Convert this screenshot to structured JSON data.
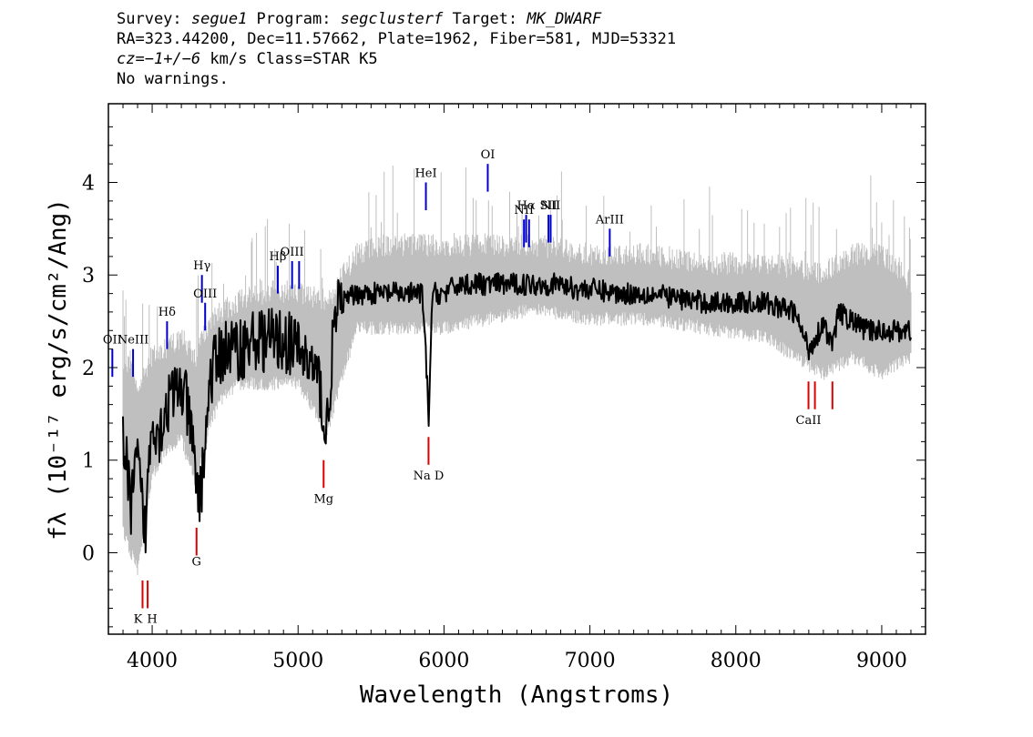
{
  "header": {
    "line1": {
      "survey_label": "Survey: ",
      "survey": "segue1",
      "program_label": " Program: ",
      "program": "segclusterf",
      "target_label": " Target: ",
      "target": "MK_DWARF"
    },
    "line2": "RA=323.44200, Dec=11.57662, Plate=1962, Fiber=581, MJD=53321",
    "line3": {
      "cz_label": "cz=",
      "cz_value": "−1+/−6",
      "cz_unit": " km/s ",
      "class": "Class=STAR K5"
    },
    "line4": "No warnings."
  },
  "colors": {
    "flux": "#000000",
    "error": "#bfbfbf",
    "emission": "#0000cc",
    "absorption": "#dd0000",
    "frame": "#000000"
  },
  "chart_data": {
    "type": "line",
    "xlabel": "Wavelength (Angstroms)",
    "ylabel": "fλ (10⁻¹⁷ erg/s/cm²/Ang)",
    "xlim": [
      3700,
      9300
    ],
    "ylim": [
      -0.88,
      4.85
    ],
    "x_ticks": [
      4000,
      5000,
      6000,
      7000,
      8000,
      9000
    ],
    "y_ticks": [
      0,
      1,
      2,
      3,
      4
    ],
    "grid": false,
    "series": [
      {
        "role": "flux",
        "x": [
          3800,
          3850,
          3900,
          3950,
          4000,
          4050,
          4100,
          4150,
          4200,
          4250,
          4300,
          4330,
          4400,
          4450,
          4500,
          4600,
          4700,
          4800,
          4900,
          5000,
          5100,
          5150,
          5190,
          5250,
          5300,
          5400,
          5500,
          5600,
          5700,
          5800,
          5850,
          5880,
          5895,
          5920,
          6000,
          6100,
          6200,
          6300,
          6400,
          6500,
          6600,
          6700,
          6800,
          6900,
          7000,
          7200,
          7400,
          7600,
          7800,
          8000,
          8200,
          8400,
          8500,
          8542,
          8600,
          8662,
          8700,
          8800,
          8900,
          9000,
          9100,
          9200
        ],
        "y": [
          1.3,
          0.5,
          1.0,
          0.2,
          1.5,
          1.3,
          1.6,
          1.7,
          1.8,
          1.5,
          0.8,
          0.6,
          1.9,
          2.1,
          2.2,
          2.2,
          2.3,
          2.3,
          2.3,
          2.2,
          2.0,
          1.8,
          1.2,
          2.5,
          2.7,
          2.8,
          2.8,
          2.8,
          2.8,
          2.8,
          2.8,
          2.0,
          1.4,
          2.8,
          2.8,
          2.9,
          2.9,
          2.9,
          2.9,
          2.9,
          2.9,
          2.9,
          2.9,
          2.85,
          2.85,
          2.8,
          2.8,
          2.75,
          2.7,
          2.7,
          2.7,
          2.6,
          2.2,
          2.3,
          2.5,
          2.2,
          2.6,
          2.5,
          2.4,
          2.4,
          2.4,
          2.4
        ]
      },
      {
        "role": "error",
        "x": [
          3800,
          3900,
          4000,
          4100,
          4200,
          4300,
          4400,
          4500,
          4600,
          4800,
          5000,
          5200,
          5400,
          5600,
          5800,
          6000,
          6300,
          6600,
          7000,
          7400,
          7800,
          8200,
          8600,
          8800,
          9000,
          9200
        ],
        "lower": [
          0.3,
          -0.1,
          0.9,
          1.2,
          1.3,
          0.8,
          1.5,
          1.8,
          1.9,
          1.9,
          1.9,
          1.4,
          2.5,
          2.5,
          2.5,
          2.5,
          2.6,
          2.7,
          2.6,
          2.6,
          2.5,
          2.4,
          2.0,
          2.2,
          2.0,
          2.2
        ],
        "upper": [
          2.0,
          1.7,
          2.0,
          2.1,
          2.2,
          2.0,
          2.4,
          2.5,
          2.6,
          2.7,
          2.7,
          2.6,
          3.1,
          3.2,
          3.2,
          3.2,
          3.2,
          3.2,
          3.1,
          3.1,
          3.0,
          3.0,
          2.9,
          3.1,
          3.1,
          2.8
        ]
      }
    ],
    "emission_lines": [
      {
        "label": "OII",
        "x": 3727,
        "y_bottom": 1.9,
        "y_top": 2.2
      },
      {
        "label": "NeIII",
        "x": 3869,
        "y_bottom": 1.9,
        "y_top": 2.2
      },
      {
        "label": "Hδ",
        "x": 4102,
        "y_bottom": 2.2,
        "y_top": 2.5
      },
      {
        "label": "Hγ",
        "x": 4341,
        "y_bottom": 2.7,
        "y_top": 3.0
      },
      {
        "label": "OIII",
        "x": 4363,
        "y_bottom": 2.4,
        "y_top": 2.7
      },
      {
        "label": "Hβ",
        "x": 4861,
        "y_bottom": 2.8,
        "y_top": 3.1
      },
      {
        "label": "OIII",
        "x": 4959,
        "y_bottom": 2.85,
        "y_top": 3.15
      },
      {
        "label": "",
        "x": 5007,
        "y_bottom": 2.85,
        "y_top": 3.15
      },
      {
        "label": "HeI",
        "x": 5876,
        "y_bottom": 3.7,
        "y_top": 4.0
      },
      {
        "label": "OI",
        "x": 6300,
        "y_bottom": 3.9,
        "y_top": 4.2
      },
      {
        "label": "NII",
        "x": 6548,
        "y_bottom": 3.3,
        "y_top": 3.6
      },
      {
        "label": "Hα",
        "x": 6563,
        "y_bottom": 3.35,
        "y_top": 3.65
      },
      {
        "label": "",
        "x": 6583,
        "y_bottom": 3.3,
        "y_top": 3.6
      },
      {
        "label": "SII",
        "x": 6716,
        "y_bottom": 3.35,
        "y_top": 3.65
      },
      {
        "label": "NII",
        "x": 6731,
        "y_bottom": 3.35,
        "y_top": 3.65
      },
      {
        "label": "ArIII",
        "x": 7136,
        "y_bottom": 3.2,
        "y_top": 3.5
      }
    ],
    "absorption_lines": [
      {
        "label": "K",
        "x": 3934,
        "y_bottom": -0.6,
        "y_top": -0.3,
        "label_y": -0.72
      },
      {
        "label": "H",
        "x": 3969,
        "y_bottom": -0.6,
        "y_top": -0.3,
        "label_y": -0.72
      },
      {
        "label": "G",
        "x": 4304,
        "y_bottom": -0.03,
        "y_top": 0.27,
        "label_y": -0.1
      },
      {
        "label": "Mg",
        "x": 5175,
        "y_bottom": 0.7,
        "y_top": 1.0,
        "label_y": 0.58
      },
      {
        "label": "Na D",
        "x": 5894,
        "y_bottom": 0.95,
        "y_top": 1.25,
        "label_y": 0.83
      },
      {
        "label": "CaII",
        "x": 8498,
        "y_bottom": 1.55,
        "y_top": 1.85,
        "label_y": 1.43
      },
      {
        "label": "",
        "x": 8542,
        "y_bottom": 1.55,
        "y_top": 1.85
      },
      {
        "label": "",
        "x": 8662,
        "y_bottom": 1.55,
        "y_top": 1.85
      }
    ]
  }
}
